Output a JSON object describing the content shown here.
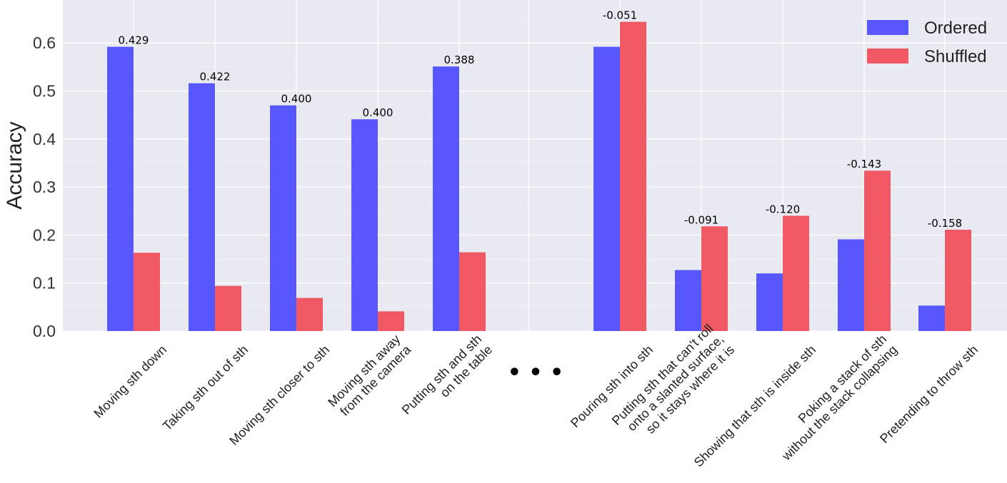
{
  "chart_data": {
    "type": "bar",
    "title": "",
    "xlabel": "",
    "ylabel": "Accuracy",
    "ylim": [
      0,
      0.67
    ],
    "yticks": [
      "0.0",
      "0.1",
      "0.2",
      "0.3",
      "0.4",
      "0.5",
      "0.6"
    ],
    "grid": true,
    "legend_position": "top-right",
    "ellipsis": "• • •",
    "categories": [
      [
        "Moving sth down"
      ],
      [
        "Taking sth out of sth"
      ],
      [
        "Moving sth closer to sth"
      ],
      [
        "Moving sth away",
        "from the camera"
      ],
      [
        "Putting sth and sth",
        "on the table"
      ],
      [
        "Pouring sth into sth"
      ],
      [
        "Putting sth that can't roll",
        "onto a slanted surface,",
        "so it stays where it is"
      ],
      [
        "Showing that sth is inside sth"
      ],
      [
        "Poking a stack of sth",
        "without the stack collapsing"
      ],
      [
        "Pretending to throw sth"
      ]
    ],
    "series": [
      {
        "name": "Ordered",
        "color": "#4f4ffd",
        "values": [
          0.592,
          0.516,
          0.47,
          0.441,
          0.551,
          0.592,
          0.127,
          0.12,
          0.191,
          0.053
        ]
      },
      {
        "name": "Shuffled",
        "color": "#f0505c",
        "values": [
          0.163,
          0.094,
          0.069,
          0.041,
          0.164,
          0.644,
          0.218,
          0.24,
          0.334,
          0.211
        ]
      }
    ],
    "data_labels": [
      "0.429",
      "0.422",
      "0.400",
      "0.400",
      "0.388",
      "-0.051",
      "-0.091",
      "-0.120",
      "-0.143",
      "-0.158"
    ],
    "background_color": "#e9e9f1"
  }
}
